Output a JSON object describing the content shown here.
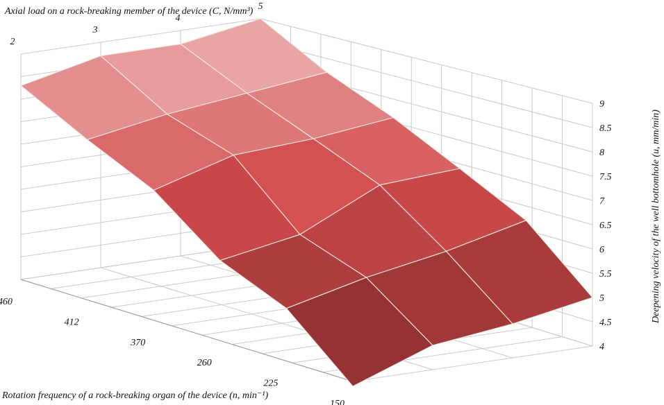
{
  "chart_data": {
    "type": "surface3d",
    "title_load_axis": "Axial load on a rock-breaking member of the device (C, N/mm³)",
    "title_rotation_axis": "Rotation frequency of a rock-breaking organ of the device (n, min⁻¹)",
    "title_velocity_axis": "Deepening velocity of the well bottomhole (u, mm/min)",
    "load_ticks": [
      "2",
      "3",
      "4",
      "5"
    ],
    "rotation_ticks": [
      "460",
      "412",
      "370",
      "260",
      "225",
      "150"
    ],
    "velocity_ticks": [
      "4",
      "4.5",
      "5",
      "5.5",
      "6",
      "6.5",
      "7",
      "7.5",
      "8",
      "8.5",
      "9"
    ],
    "zlim": [
      4,
      9
    ],
    "grid": true,
    "values": [
      [
        8.3,
        8.7,
        8.7,
        9.0
      ],
      [
        7.5,
        7.8,
        8.0,
        8.2
      ],
      [
        6.8,
        7.3,
        7.4,
        7.6
      ],
      [
        5.7,
        6.0,
        6.8,
        6.9
      ],
      [
        5.1,
        5.5,
        5.8,
        6.2
      ],
      [
        3.9,
        4.5,
        4.7,
        5.0
      ]
    ],
    "surface_color_low": "#7e2a2b",
    "surface_color_mid": "#d24b4b",
    "surface_color_high": "#f0bfbf"
  }
}
